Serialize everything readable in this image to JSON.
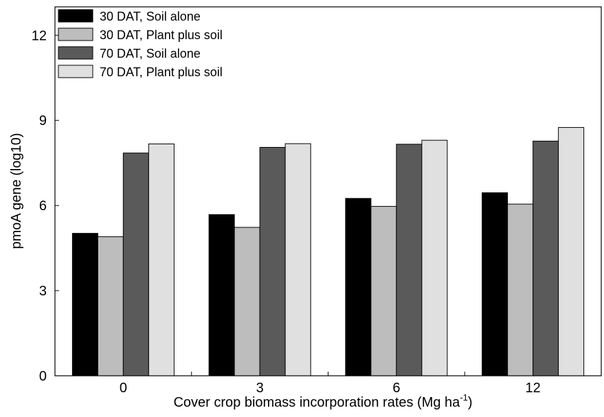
{
  "chart_data": {
    "type": "bar",
    "y_label": "pmoA gene (log10)",
    "x_label": {
      "text": "Cover crop biomass incorporation rates (Mg ha",
      "superscript": "-1",
      "suffix": ")"
    },
    "categories": [
      "0",
      "3",
      "6",
      "12"
    ],
    "series": [
      {
        "name": "30 DAT, Soil alone",
        "color": "#000000",
        "values": [
          5.02,
          5.68,
          6.25,
          6.45
        ]
      },
      {
        "name": "30 DAT, Plant plus soil",
        "color": "#bdbdbd",
        "values": [
          4.9,
          5.23,
          5.97,
          6.05
        ]
      },
      {
        "name": "70 DAT, Soil alone",
        "color": "#5a5a5a",
        "values": [
          7.85,
          8.05,
          8.16,
          8.27
        ]
      },
      {
        "name": "70 DAT, Plant plus soil",
        "color": "#e0e0e0",
        "values": [
          8.17,
          8.18,
          8.3,
          8.75
        ]
      }
    ],
    "ylim": [
      0,
      13
    ],
    "yticks": [
      0,
      3,
      6,
      9,
      12
    ],
    "legend": "top-left"
  }
}
